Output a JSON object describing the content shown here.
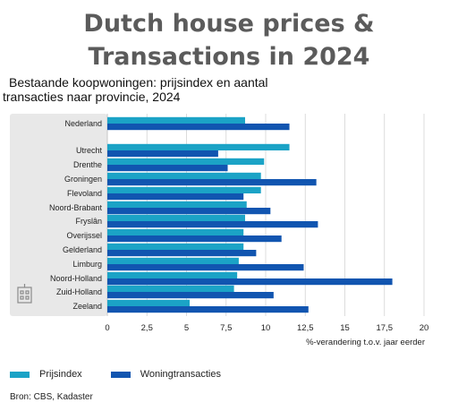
{
  "title_line1": "Dutch house prices &",
  "title_line2": "Transactions in 2024",
  "subtitle_line1": "Bestaande koopwoningen: prijsindex en aantal",
  "subtitle_line2": "transacties naar provincie, 2024",
  "source": "Bron: CBS, Kadaster",
  "chart_data": {
    "type": "bar",
    "orientation": "horizontal",
    "xlabel": "%-verandering t.o.v. jaar eerder",
    "xlim": [
      0,
      20
    ],
    "xticks": [
      "0",
      "2,5",
      "5",
      "7,5",
      "10",
      "12,5",
      "15",
      "17,5",
      "20"
    ],
    "categories": [
      "Nederland",
      "Utrecht",
      "Drenthe",
      "Groningen",
      "Flevoland",
      "Noord-Brabant",
      "Fryslân",
      "Overijssel",
      "Gelderland",
      "Limburg",
      "Noord-Holland",
      "Zuid-Holland",
      "Zeeland"
    ],
    "series": [
      {
        "name": "Prijsindex",
        "color": "#1ba3c6",
        "values": [
          8.7,
          11.5,
          9.9,
          9.7,
          9.7,
          8.8,
          8.7,
          8.6,
          8.6,
          8.3,
          8.2,
          8.0,
          5.2
        ]
      },
      {
        "name": "Woningtransacties",
        "color": "#1155b0",
        "values": [
          11.5,
          7.0,
          7.6,
          13.2,
          8.6,
          10.3,
          13.3,
          11.0,
          9.4,
          12.4,
          18.0,
          10.5,
          12.7
        ]
      }
    ],
    "highlight_category": "Nederland",
    "grid": true,
    "legend_position": "bottom-left"
  },
  "icons": {
    "province": "building-icon"
  }
}
